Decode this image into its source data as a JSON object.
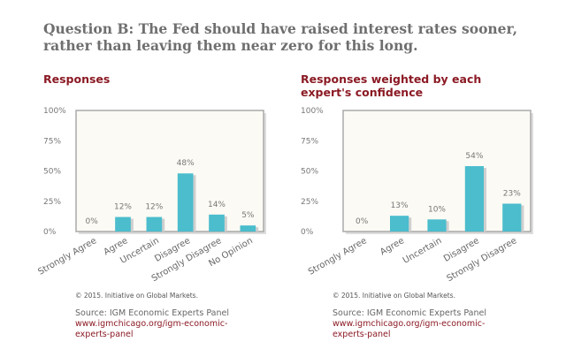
{
  "title": "Question B: The Fed should have raised interest rates sooner, rather than leaving them near zero for this long.",
  "colors": {
    "bar": "#4bbdcd",
    "plot_bg": "#fcfaf4",
    "title_red": "#8b1a24"
  },
  "chart_data": [
    {
      "type": "bar",
      "title": "Responses",
      "categories": [
        "Strongly Agree",
        "Agree",
        "Uncertain",
        "Disagree",
        "Strongly Disagree",
        "No Opinion"
      ],
      "values": [
        0,
        12,
        12,
        48,
        14,
        5
      ],
      "data_labels": [
        "0%",
        "12%",
        "12%",
        "48%",
        "14%",
        "5%"
      ],
      "yticks": [
        "0%",
        "25%",
        "50%",
        "75%",
        "100%"
      ],
      "ylim": [
        0,
        100
      ],
      "grid": false
    },
    {
      "type": "bar",
      "title": "Responses weighted by each expert's confidence",
      "categories": [
        "Strongly Agree",
        "Agree",
        "Uncertain",
        "Disagree",
        "Strongly Disagree"
      ],
      "values": [
        0,
        13,
        10,
        54,
        23
      ],
      "data_labels": [
        "0%",
        "13%",
        "10%",
        "54%",
        "23%"
      ],
      "yticks": [
        "0%",
        "25%",
        "50%",
        "75%",
        "100%"
      ],
      "ylim": [
        0,
        100
      ],
      "grid": false
    }
  ],
  "footer": {
    "copyright": "© 2015. Initiative on Global Markets.",
    "source": "Source: IGM Economic Experts Panel",
    "url_line1": "www.igmchicago.org/igm-economic-",
    "url_line2": "experts-panel"
  }
}
